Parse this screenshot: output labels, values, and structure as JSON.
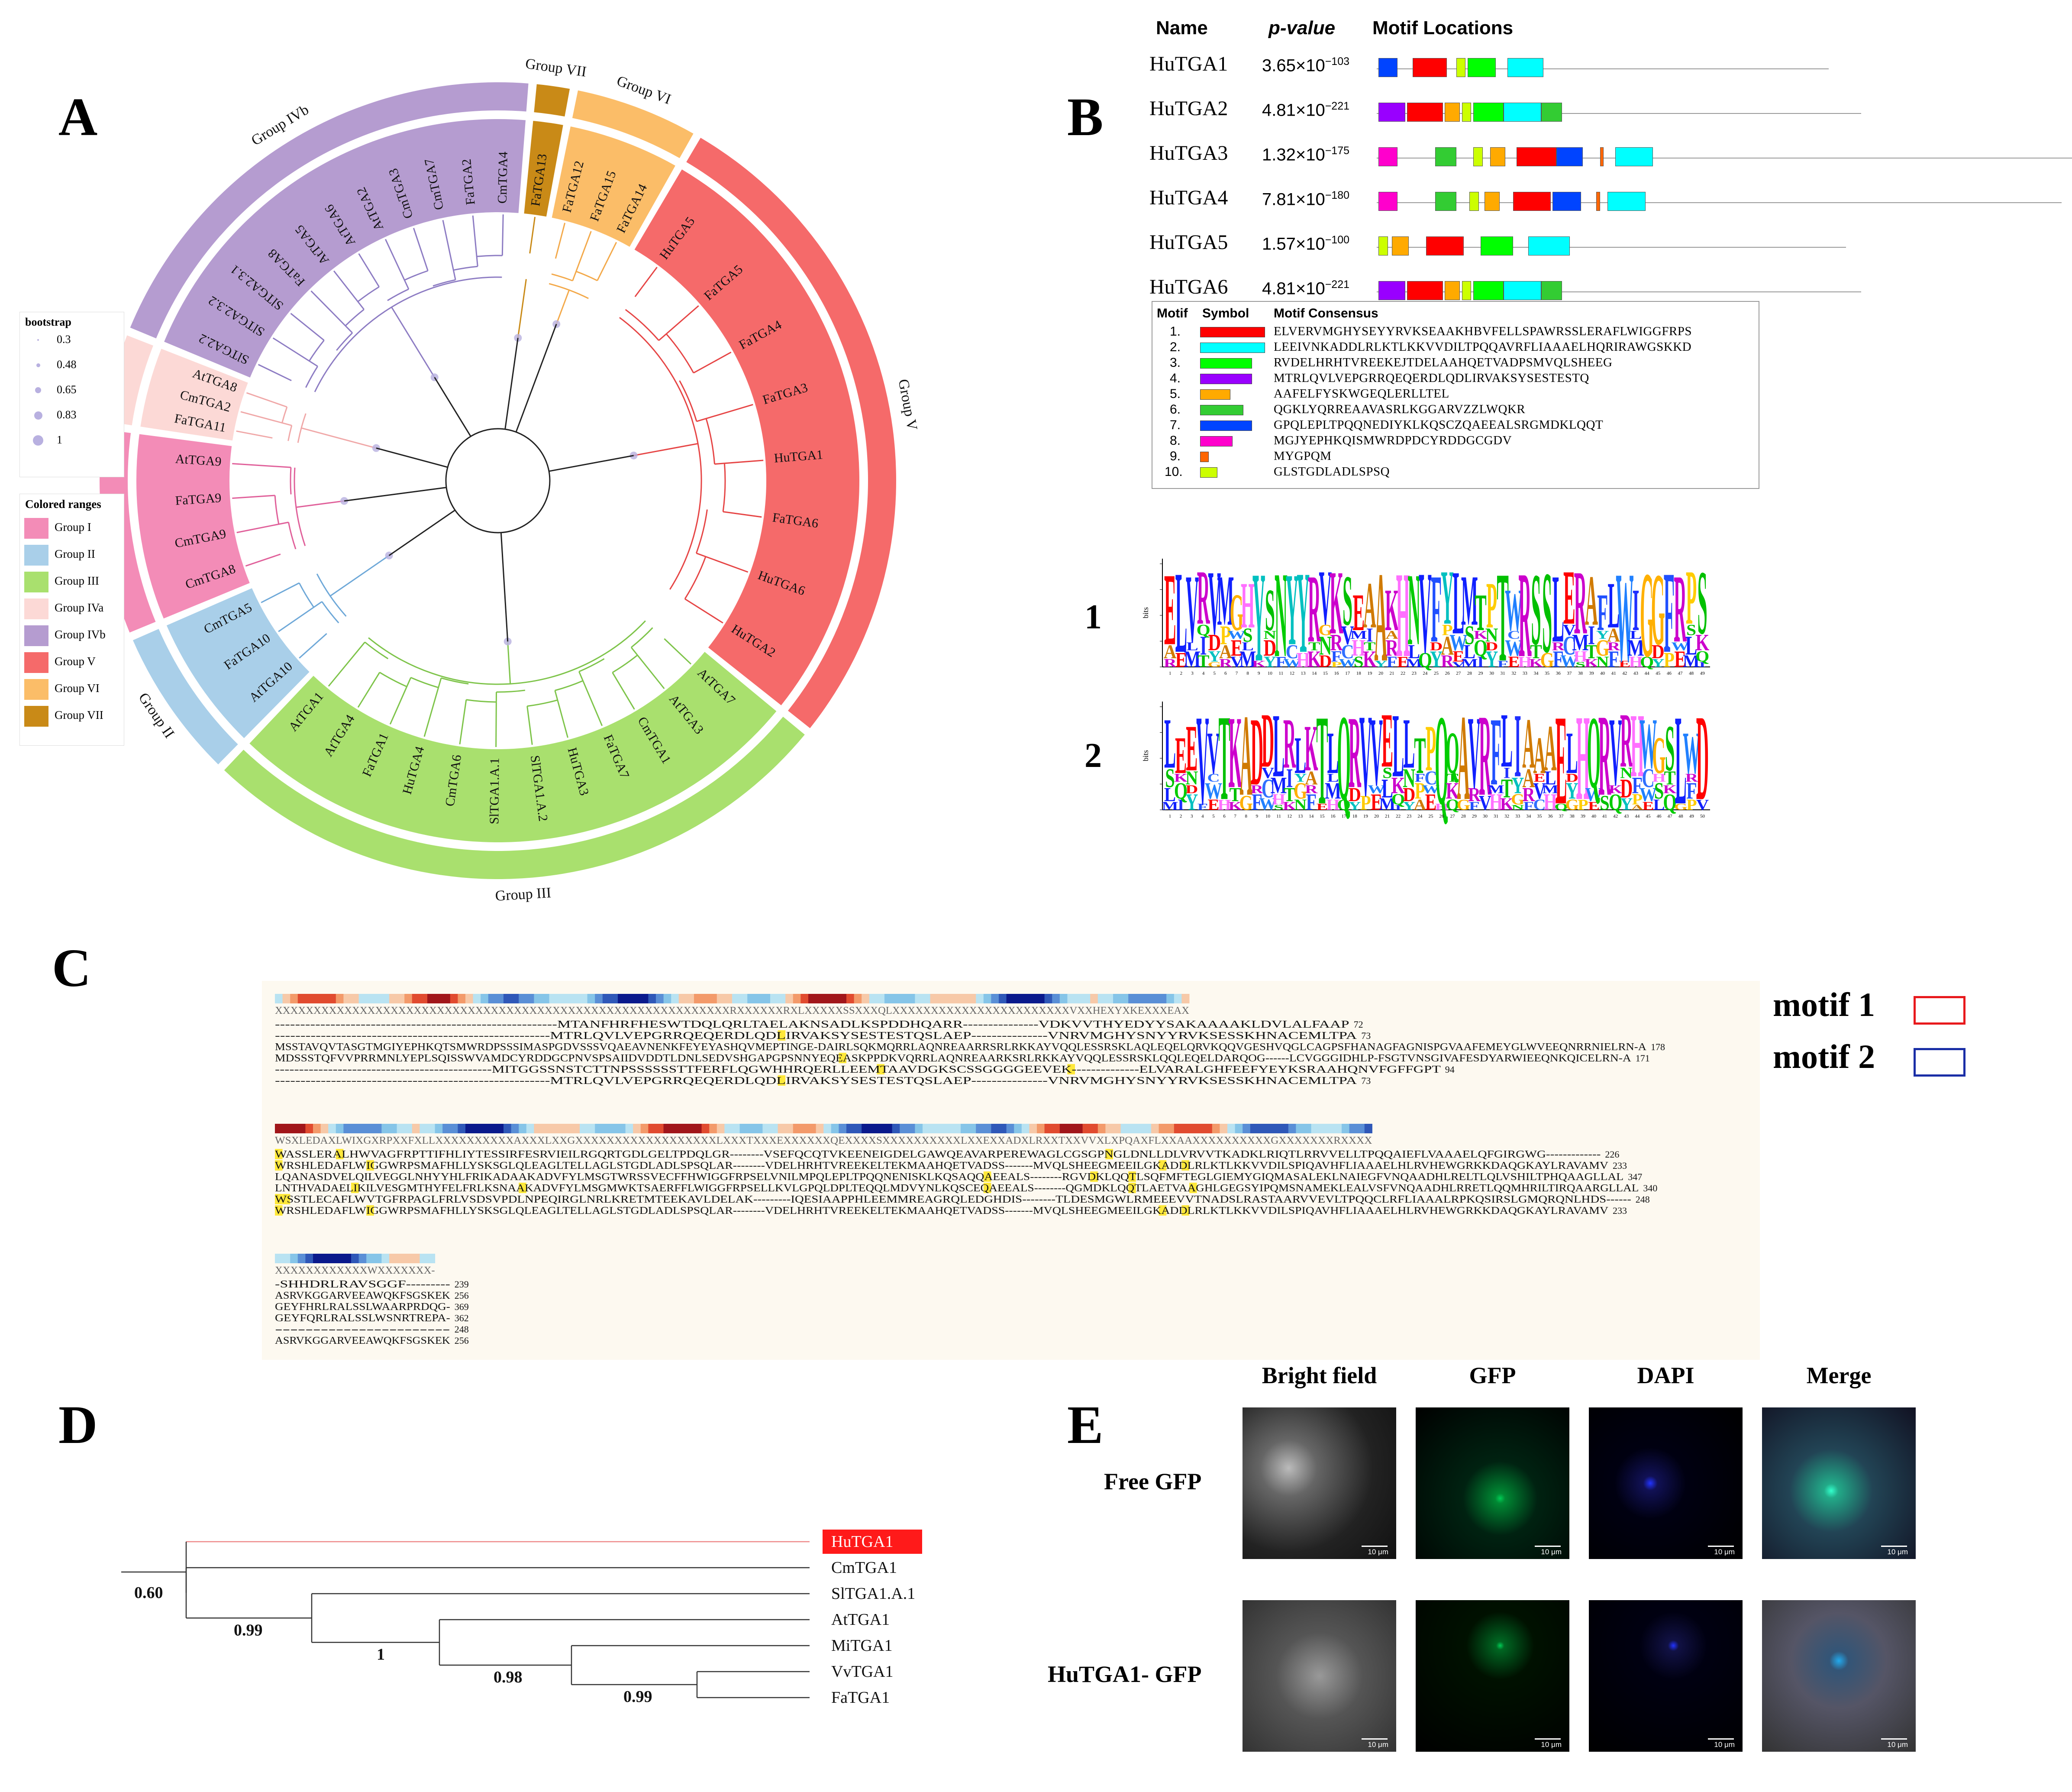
{
  "panels": {
    "a": "A",
    "b": "B",
    "c": "C",
    "d": "D",
    "e": "E"
  },
  "panel_a": {
    "bootstrap": {
      "title": "bootstrap",
      "values": [
        "0.3",
        "0.48",
        "0.65",
        "0.83",
        "1"
      ]
    },
    "colored_ranges": {
      "title": "Colored ranges",
      "groups": [
        {
          "label": "Group I",
          "color": "#f38cb7"
        },
        {
          "label": "Group II",
          "color": "#a9cfe9"
        },
        {
          "label": "Group III",
          "color": "#a9e06e"
        },
        {
          "label": "Group IVa",
          "color": "#fcd9d6"
        },
        {
          "label": "Group IVb",
          "color": "#b59cd0"
        },
        {
          "label": "Group V",
          "color": "#f56a6a"
        },
        {
          "label": "Group VI",
          "color": "#fbbd68"
        },
        {
          "label": "Group VII",
          "color": "#c98a17"
        }
      ]
    },
    "groups": [
      {
        "label": "Group IVb",
        "color": "#b59cd0",
        "a0": -68,
        "a1": 5,
        "leaves": [
          "SlTGA2.2",
          "SlTGA2.3.2",
          "SlTGA2.3.1",
          "FaTGA8",
          "AtTGA5",
          "AtTGA6",
          "AtTGA2",
          "CmTGA3",
          "CmTGA7",
          "FaTGA2",
          "CmTGA4"
        ]
      },
      {
        "label": "Group VII",
        "color": "#c98a17",
        "a0": 5,
        "a1": 11,
        "leaves": [
          "FaTGA13"
        ]
      },
      {
        "label": "Group VI",
        "color": "#fbbd68",
        "a0": 11,
        "a1": 30,
        "leaves": [
          "FaTGA12",
          "FaTGA15",
          "FaTGA14"
        ]
      },
      {
        "label": "Group V",
        "color": "#f56a6a",
        "a0": 30,
        "a1": 129,
        "leaves": [
          "HuTGA5",
          "FaTGA5",
          "FaTGA4",
          "FaTGA3",
          "HuTGA1",
          "FaTGA6",
          "HuTGA6",
          "HuTGA2"
        ]
      },
      {
        "label": "Group III",
        "color": "#a9e06e",
        "a0": 129,
        "a1": 224,
        "leaves": [
          "AtTGA7",
          "AtTGA3",
          "CmTGA1",
          "FaTGA7",
          "HuTGA3",
          "SlTGA1.A.2",
          "SlTGA1.A.1",
          "CmTGA6",
          "HuTGA4",
          "FaTGA1",
          "AtTGA4",
          "AtTGA1"
        ]
      },
      {
        "label": "Group II",
        "color": "#a9cfe9",
        "a0": 224,
        "a1": 247,
        "leaves": [
          "AtTGA10",
          "FaTGA10",
          "CmTGA5"
        ]
      },
      {
        "label": "Group I",
        "color": "#f38cb7",
        "a0": 247,
        "a1": 278,
        "leaves": [
          "CmTGA8",
          "CmTGA9",
          "FaTGA9",
          "AtTGA9"
        ]
      },
      {
        "label": "Group IVa",
        "color": "#fcd9d6",
        "a0": 278,
        "a1": 292,
        "leaves": [
          "FaTGA11",
          "CmTGA2",
          "AtTGA8"
        ]
      }
    ]
  },
  "panel_b": {
    "headers": {
      "name": "Name",
      "pvalue": "p-value",
      "locations": "Motif Locations"
    },
    "rows": [
      {
        "name": "HuTGA1",
        "pvalue": "3.65×10",
        "exp": "−103",
        "len": 239,
        "motifs": [
          [
            1,
            11,
            7
          ],
          [
            19,
            37,
            1
          ],
          [
            42,
            47,
            10
          ],
          [
            48,
            63,
            3
          ],
          [
            69,
            88,
            2
          ]
        ]
      },
      {
        "name": "HuTGA2",
        "pvalue": "4.81×10",
        "exp": "−221",
        "len": 256,
        "motifs": [
          [
            1,
            15,
            4
          ],
          [
            16,
            35,
            1
          ],
          [
            36,
            44,
            5
          ],
          [
            45,
            50,
            10
          ],
          [
            51,
            67,
            3
          ],
          [
            67,
            87,
            2
          ],
          [
            87,
            98,
            6
          ]
        ]
      },
      {
        "name": "HuTGA3",
        "pvalue": "1.32×10",
        "exp": "−175",
        "len": 369,
        "motifs": [
          [
            1,
            11,
            8
          ],
          [
            31,
            42,
            6
          ],
          [
            51,
            56,
            10
          ],
          [
            60,
            68,
            5
          ],
          [
            74,
            95,
            1
          ],
          [
            95,
            109,
            7
          ],
          [
            118,
            120,
            9
          ],
          [
            126,
            146,
            2
          ]
        ]
      },
      {
        "name": "HuTGA4",
        "pvalue": "7.81×10",
        "exp": "−180",
        "len": 362,
        "motifs": [
          [
            1,
            11,
            8
          ],
          [
            31,
            42,
            6
          ],
          [
            49,
            54,
            10
          ],
          [
            57,
            65,
            5
          ],
          [
            72,
            92,
            1
          ],
          [
            93,
            108,
            7
          ],
          [
            116,
            118,
            9
          ],
          [
            122,
            142,
            2
          ]
        ]
      },
      {
        "name": "HuTGA5",
        "pvalue": "1.57×10",
        "exp": "−100",
        "len": 248,
        "motifs": [
          [
            1,
            6,
            10
          ],
          [
            8,
            17,
            5
          ],
          [
            26,
            46,
            1
          ],
          [
            55,
            72,
            3
          ],
          [
            80,
            102,
            2
          ]
        ]
      },
      {
        "name": "HuTGA6",
        "pvalue": "4.81×10",
        "exp": "−221",
        "len": 256,
        "motifs": [
          [
            1,
            15,
            4
          ],
          [
            16,
            35,
            1
          ],
          [
            36,
            44,
            5
          ],
          [
            45,
            50,
            10
          ],
          [
            51,
            67,
            3
          ],
          [
            67,
            87,
            2
          ],
          [
            87,
            98,
            6
          ]
        ]
      }
    ],
    "table": {
      "headers": {
        "motif": "Motif",
        "symbol": "Symbol",
        "consensus": "Motif Consensus"
      },
      "rows": [
        {
          "n": "1.",
          "color": "#ff0000",
          "w": 150,
          "seq": "ELVERVMGHYSEYYRVKSEAAKHBVFELLSPAWRSSLERAFLWIGGFRPS"
        },
        {
          "n": "2.",
          "color": "#00ffff",
          "w": 150,
          "seq": "LEEIVNKADDLRLKTLKKVVDILTPQQAVRFLIAAAELHQRIRAWGSKKD"
        },
        {
          "n": "3.",
          "color": "#00ff00",
          "w": 120,
          "seq": "RVDELHRHTVREEKEJTDELAAHQETVADPSMVQLSHEEG"
        },
        {
          "n": "4.",
          "color": "#9900ff",
          "w": 120,
          "seq": "MTRLQVLVEPGRRQEQERDLQDLIRVAKSYSESTESTQ"
        },
        {
          "n": "5.",
          "color": "#ffaa00",
          "w": 70,
          "seq": "AAFELFYSKWGEQLERLLTEL"
        },
        {
          "n": "6.",
          "color": "#33cc33",
          "w": 100,
          "seq": "QGKLYQRREAAVASRLKGGARVZZLWQKR"
        },
        {
          "n": "7.",
          "color": "#0044ff",
          "w": 120,
          "seq": "GPQLEPLTPQQNEDIYKLKQSCZQAEEALSRGMDKLQQT"
        },
        {
          "n": "8.",
          "color": "#ff00cc",
          "w": 75,
          "seq": "MGJYEPHKQISMWRDPDCYRDDGCGDV"
        },
        {
          "n": "9.",
          "color": "#ff6600",
          "w": 20,
          "seq": "MYGPQM"
        },
        {
          "n": "10.",
          "color": "#ccff00",
          "w": 40,
          "seq": "GLSTGDLADLSPSQ"
        }
      ]
    },
    "logo1_label": "1",
    "logo2_label": "2",
    "logo_axis": "bits",
    "logo1_letters": "ELVRVMGHYSNYYRVKSEAAKHNVFYLMTPTWRSSLERAFLWIGGFRPS",
    "logo2_letters": "LEEVVTKADDLRLKTLQRVVELLTPQQAVRFLIAAAELHQRVRHWGSLWD"
  },
  "panel_c": {
    "legend": [
      {
        "label": "motif 1",
        "color": "#e8191c"
      },
      {
        "label": "motif 2",
        "color": "#1a2ea6"
      }
    ],
    "consensus": [
      "XXXXXXXXXXXXXXXXXXXXXXXXXXXXXXXXXXXXXXXXXXXXXXXXXXXXXXXXXXXRXXXXXXRXLXXXXXSSXXXQLXXXXXXXXXXXXXXXXXXXXXXXVXXHEXYXKEXXXEAX",
      "WSXLEDAXLWIXGXRPXXFXLLXXXXXXXXXXAXXXLXXGXXXXXXXXXXXXXXXXXXLXXXTXXXEXXXXXXQEXXXXSXXXXXXXXXXLXXEXXADXLRXXTXXVVXLXPQAXFLXXAAXXXXXXXXXXGXXXXXXXRXXXX",
      "XXXXXXXXXXXXWXXXXXXX-"
    ],
    "block1": [
      {
        "seq": "--------------------------------------------------------MTANFHRFHESWTDQLQRLTAELAKNSADLKSPDDHQARR---------------VDKVVTHYEDYYSAKAAAAKLDVLALFAAP",
        "n": "72"
      },
      {
        "seq": "------------------------------------------------------MTRLQVLVEPGRRQEQERDLQDLIRVAKSYSESTESTQSLAEP---------------VNRVMGHYSNYYRVKSESSKHNACEMLTPA",
        "n": "73"
      },
      {
        "seq": "MSSTAVQVTASGTMGIYEPHKQTSMWRDPSSSIMASPGDVSSSVQAEAVNENKFEYEYASHQVMEPTINGE-DAIRLSQKMQRRLAQNREAARRSRLRKKAYVQQLESSRSKLAQLEQELQRVKQQVGESHVQGLCAGPSFHANAGFAGNISPGVAAFEMEYGLWVEEQNRRNIELRN-A",
        "n": "178"
      },
      {
        "seq": "MDSSSTQFVVPRRMNLYEPLSQISSWVAMDCYRDDGCPNVSPSAIIDVDDTLDNLSEDVSHGAPGPSNNYEQEASKPPDKVQRRLAQNREAARKSRLRKKAYVQQLESSRSKLQQLEQELDARQOG------LCVGGGIDHLP-FSGTVNSGIVAFESDYARWIEEQNKQICELRN-A",
        "n": "171"
      },
      {
        "seq": "---------------------------------------------MITGGSSNSTCTTNPSSSSSSTTFERFLQGWHHRQERLLEEMTAAVDGKSCSSGGGGEEVEK--------------ELVARALGHFEEFYEYKSRAAHQNVFGFFGPT",
        "n": "94"
      },
      {
        "seq": "------------------------------------------------------MTRLQVLVEPGRRQEQERDLQDLIRVAKSYSESTESTQSLAEP---------------VNRVMGHYSNYYRVKSESSKHNACEMLTPA",
        "n": "73"
      }
    ],
    "block2": [
      {
        "seq": "WASSLERALHWVAGFRPTTIFHLIYTESSIRFESRVIEILRGQRTGDLGELTPDQLGR--------VSEFQCQTVKEENEIGDELGAWQEAVARPEREWAGLCGSGPNGLDNLLDLVRVVTKADKLRIQTLRRVVELLTPQQAIEFLVAAAELQFGIRGWG-------------",
        "n": "226"
      },
      {
        "seq": "WRSHLEDAFLWIGGWRPSMAFHLLYSKSGLQLEAGLTELLAGLSTGDLADLSPSQLAR--------VDELHRHTVREEKELTEKMAAHQETVADSS-------MVQLSHEEGMEEILGKADDLRLKTLKKVVDILSPIQAVHFLIAAAELHLRVHEWGRKKDAQGKAYLRAVAMV",
        "n": "233"
      },
      {
        "seq": "LQANASDVELQILVEGGLNHYYHLFRIKADAAKADVFYLMSGTWRSSVECFFHWIGGFRPSELVNILMPQLEPLTPQQNENISKLKQSAQQAEEALS--------RGVDKLQQTLSQFMFTEGLGIEMYGIQMASALEKLNAIEGFVNQAADHLRELTLQLVSHILTPHQAAGLLAL",
        "n": "347"
      },
      {
        "seq": "LNTHVADAELIKILVESGMTHYFELFRLKSNAAKADVFYLMSGMWKTSAERFFLWIGGFRPSELLKVLGPQLDPLTEQQLMDVYNLKQSCEQAEEALS--------QGMDKLQQTLAETVAAGHLGEGSYIPQMSNAMEKLEALVSFVNQAADHLRRETLQQMHRILTIRQAARGLLAL",
        "n": "340"
      },
      {
        "seq": "WSSTLECAFLWVTGFRPAGLFRLVSDSVPDLNPEQIRGLNRLKRETMTEEKAVLDELAK---------IQESIAAPPHLEEMMREAGRQLEDGHDIS--------TLDESMGWLRMEEEVVTNADSLRASTAARVVEVLTPQQCLRFLIAAALRPKQSIRSLGMQRQNLHDS------",
        "n": "248"
      },
      {
        "seq": "WRSHLEDAFLWIGGWRPSMAFHLLYSKSGLQLEAGLTELLAGLSTGDLADLSPSQLAR--------VDELHRHTVREEKELTEKMAAHQETVADSS-------MVQLSHEEGMEEILGKADDLRLKTLKKVVDILSPIQAVHFLIAAAELHLRVHEWGRKKDAQGKAYLRAVAMV",
        "n": "233"
      }
    ],
    "block3": [
      {
        "seq": "-SHHDRLRAVSGGF---------",
        "n": "239"
      },
      {
        "seq": "ASRVKGGARVEEAWQKFSGSKEK",
        "n": "256"
      },
      {
        "seq": "GEYFHRLRALSSLWAARPRDQG-",
        "n": "369"
      },
      {
        "seq": "GEYFQRLRALSSLWSNRTREPA-",
        "n": "362"
      },
      {
        "seq": "-----------------------",
        "n": "248"
      },
      {
        "seq": "ASRVKGGARVEEAWQKFSGSKEK",
        "n": "256"
      }
    ]
  },
  "panel_d": {
    "leaves": [
      "HuTGA1",
      "CmTGA1",
      "SlTGA1.A.1",
      "AtTGA1",
      "MiTGA1",
      "VvTGA1",
      "FaTGA1"
    ],
    "bootstraps": [
      "0.60",
      "0.99",
      "1",
      "0.98",
      "0.99"
    ]
  },
  "panel_e": {
    "columns": [
      "Bright field",
      "GFP",
      "DAPI",
      "Merge"
    ],
    "rows": [
      "Free GFP",
      "HuTGA1- GFP"
    ],
    "scale_bar": "10 μm"
  }
}
